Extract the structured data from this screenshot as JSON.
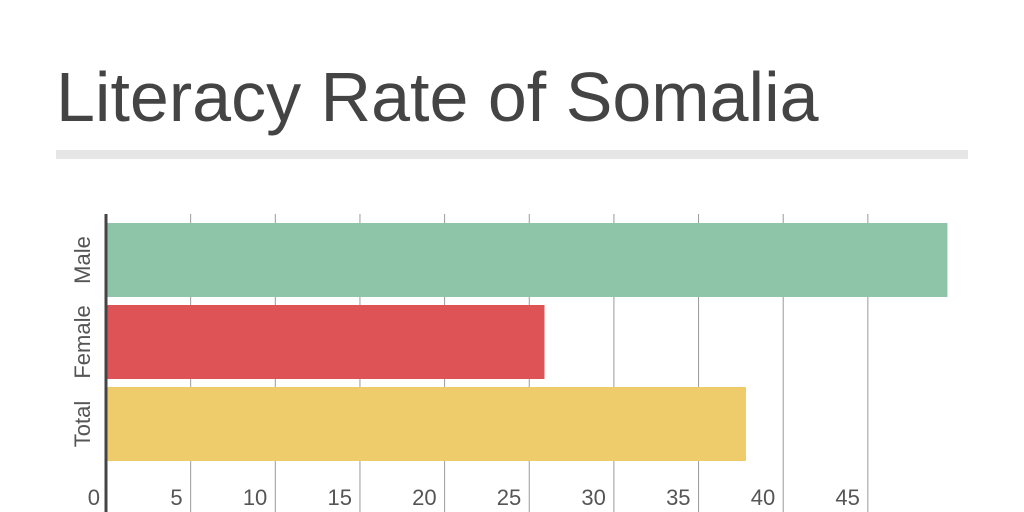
{
  "title": "Literacy Rate of Somalia",
  "chart_data": {
    "type": "bar",
    "orientation": "horizontal",
    "title": "Literacy Rate of Somalia",
    "xlabel": "",
    "ylabel": "",
    "categories": [
      "Male",
      "Female",
      "Total"
    ],
    "values": [
      49.7,
      25.9,
      37.8
    ],
    "colors": [
      "#8ec4a8",
      "#de5355",
      "#eecb6b"
    ],
    "xlim": [
      0,
      50
    ],
    "x_ticks": [
      0,
      5,
      10,
      15,
      20,
      25,
      30,
      35,
      40,
      45
    ],
    "grid": true,
    "legend": "none"
  }
}
